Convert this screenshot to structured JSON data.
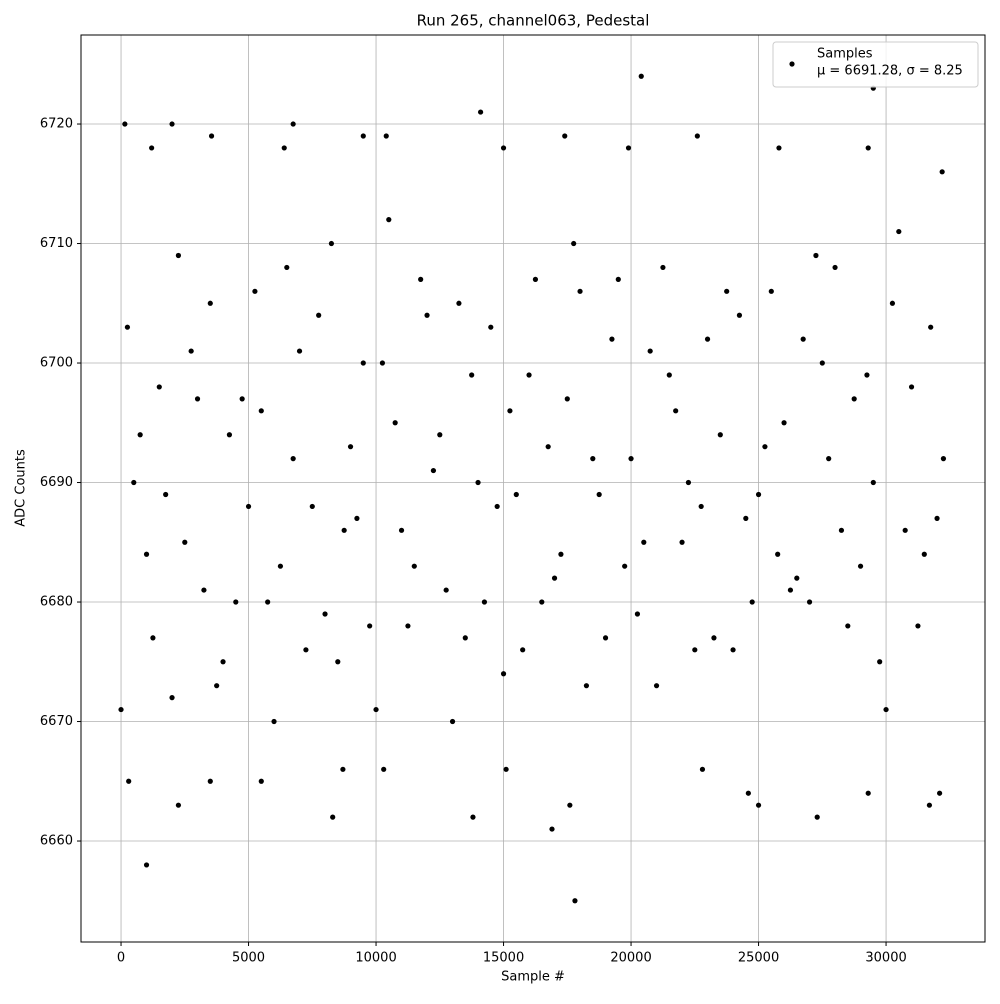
{
  "chart_data": {
    "type": "scatter",
    "title": "Run 265, channel063, Pedestal",
    "x_label": "Sample #",
    "y_label": "ADC Counts",
    "legend_stats": "μ = 6691.28, σ = 8.25",
    "legend_position": "upper right",
    "grid": true,
    "xlim": [
      -1570,
      33880
    ],
    "ylim": [
      6651.55,
      6727.45
    ],
    "xticks": [
      0,
      5000,
      10000,
      15000,
      20000,
      25000,
      30000
    ],
    "yticks": [
      6660,
      6670,
      6680,
      6690,
      6700,
      6710,
      6720
    ],
    "series": [
      {
        "name": "Samples",
        "color": "#000000",
        "x": [
          0,
          1000,
          2000,
          3000,
          4000,
          5000,
          6000,
          7000,
          8000,
          9000,
          10000,
          11000,
          12000,
          13000,
          14000,
          15000,
          16000,
          17000,
          18000,
          19000,
          20000,
          21000,
          22000,
          23000,
          24000,
          25000,
          26000,
          27000,
          28000,
          29000,
          30000,
          31000,
          32000,
          250,
          1250,
          2250,
          3250,
          4250,
          5250,
          6250,
          7250,
          8250,
          9250,
          10250,
          11250,
          12250,
          13250,
          14250,
          15250,
          16250,
          17250,
          18250,
          19250,
          20250,
          21250,
          22250,
          23250,
          24250,
          25250,
          26250,
          27250,
          28250,
          29250,
          30250,
          31250,
          32250,
          500,
          1500,
          2500,
          3500,
          4500,
          5500,
          6500,
          7500,
          8500,
          9500,
          10500,
          11500,
          12500,
          13500,
          14500,
          15500,
          16500,
          17500,
          18500,
          19500,
          20500,
          21500,
          22500,
          23500,
          24500,
          25500,
          26500,
          27500,
          28500,
          29500,
          30500,
          31500,
          750,
          1750,
          2750,
          3750,
          4750,
          5750,
          6750,
          7750,
          8750,
          9750,
          10750,
          11750,
          12750,
          13750,
          14750,
          15750,
          16750,
          17750,
          18750,
          19750,
          20750,
          21750,
          22750,
          23750,
          24750,
          25750,
          26750,
          27750,
          28750,
          29750,
          30750,
          31750,
          1000,
          150,
          2000,
          6750,
          14100,
          20400,
          29500,
          17800,
          16900,
          8300,
          13800,
          27300,
          2250,
          17600,
          25000,
          31700,
          32100,
          24600,
          29300,
          300,
          3500,
          5500,
          10300,
          15100,
          8700,
          22800,
          3550,
          9500,
          10400,
          17400,
          22600,
          15000,
          1200,
          6400,
          19900,
          25800,
          29300,
          32200
        ],
        "values": [
          6671,
          6684,
          6672,
          6697,
          6675,
          6688,
          6670,
          6701,
          6679,
          6693,
          6671,
          6686,
          6704,
          6670,
          6690,
          6674,
          6699,
          6682,
          6706,
          6677,
          6692,
          6673,
          6685,
          6702,
          6676,
          6689,
          6695,
          6680,
          6708,
          6683,
          6671,
          6698,
          6687,
          6703,
          6677,
          6709,
          6681,
          6694,
          6706,
          6683,
          6676,
          6710,
          6687,
          6700,
          6678,
          6691,
          6705,
          6680,
          6696,
          6707,
          6684,
          6673,
          6702,
          6679,
          6708,
          6690,
          6677,
          6704,
          6693,
          6681,
          6709,
          6686,
          6699,
          6705,
          6678,
          6692,
          6690,
          6698,
          6685,
          6705,
          6680,
          6696,
          6708,
          6688,
          6675,
          6700,
          6712,
          6683,
          6694,
          6677,
          6703,
          6689,
          6680,
          6697,
          6692,
          6707,
          6685,
          6699,
          6676,
          6694,
          6687,
          6706,
          6682,
          6700,
          6678,
          6690,
          6711,
          6684,
          6694,
          6689,
          6701,
          6673,
          6697,
          6680,
          6692,
          6704,
          6686,
          6678,
          6695,
          6707,
          6681,
          6699,
          6688,
          6676,
          6693,
          6710,
          6689,
          6683,
          6701,
          6696,
          6688,
          6706,
          6680,
          6684,
          6702,
          6692,
          6697,
          6675,
          6686,
          6703,
          6658,
          6720,
          6720,
          6720,
          6721,
          6724,
          6723,
          6655,
          6661,
          6662,
          6662,
          6662,
          6663,
          6663,
          6663,
          6663,
          6664,
          6664,
          6664,
          6665,
          6665,
          6665,
          6666,
          6666,
          6666,
          6666,
          6719,
          6719,
          6719,
          6719,
          6719,
          6718,
          6718,
          6718,
          6718,
          6718,
          6718,
          6716
        ]
      }
    ]
  }
}
